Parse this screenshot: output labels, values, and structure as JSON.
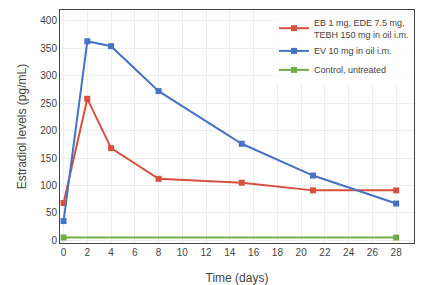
{
  "chart_data": {
    "type": "line",
    "xlabel": "Time (days)",
    "ylabel": "Estradiol levels (pg/mL)",
    "series": [
      {
        "name": "EB 1 mg, EDE 7.5 mg,\nTEBH 150 mg in oil i.m.",
        "color": "#d94f3d",
        "marker": "square",
        "line_style": "solid",
        "x": [
          0,
          2,
          4,
          8,
          15,
          21,
          28
        ],
        "values": [
          68,
          258,
          168,
          112,
          105,
          91,
          91
        ]
      },
      {
        "name": "EV 10 mg in oil i.m.",
        "color": "#4472c4",
        "marker": "square",
        "line_style": "solid",
        "x": [
          0,
          2,
          4,
          8,
          15,
          21,
          28
        ],
        "values": [
          35,
          363,
          354,
          272,
          176,
          118,
          67
        ]
      },
      {
        "name": "Control, untreated",
        "color": "#70ad47",
        "marker": "square",
        "line_style": "solid",
        "x": [
          0,
          28
        ],
        "values": [
          5,
          5
        ]
      }
    ],
    "xlim": [
      -0.3,
      29.5
    ],
    "ylim": [
      -5,
      420
    ],
    "xticks": [
      0,
      2,
      4,
      6,
      8,
      10,
      12,
      14,
      16,
      18,
      20,
      22,
      24,
      26,
      28
    ],
    "yticks": [
      0,
      50,
      100,
      150,
      200,
      250,
      300,
      350,
      400
    ],
    "grid": true,
    "legend": "upper right"
  }
}
